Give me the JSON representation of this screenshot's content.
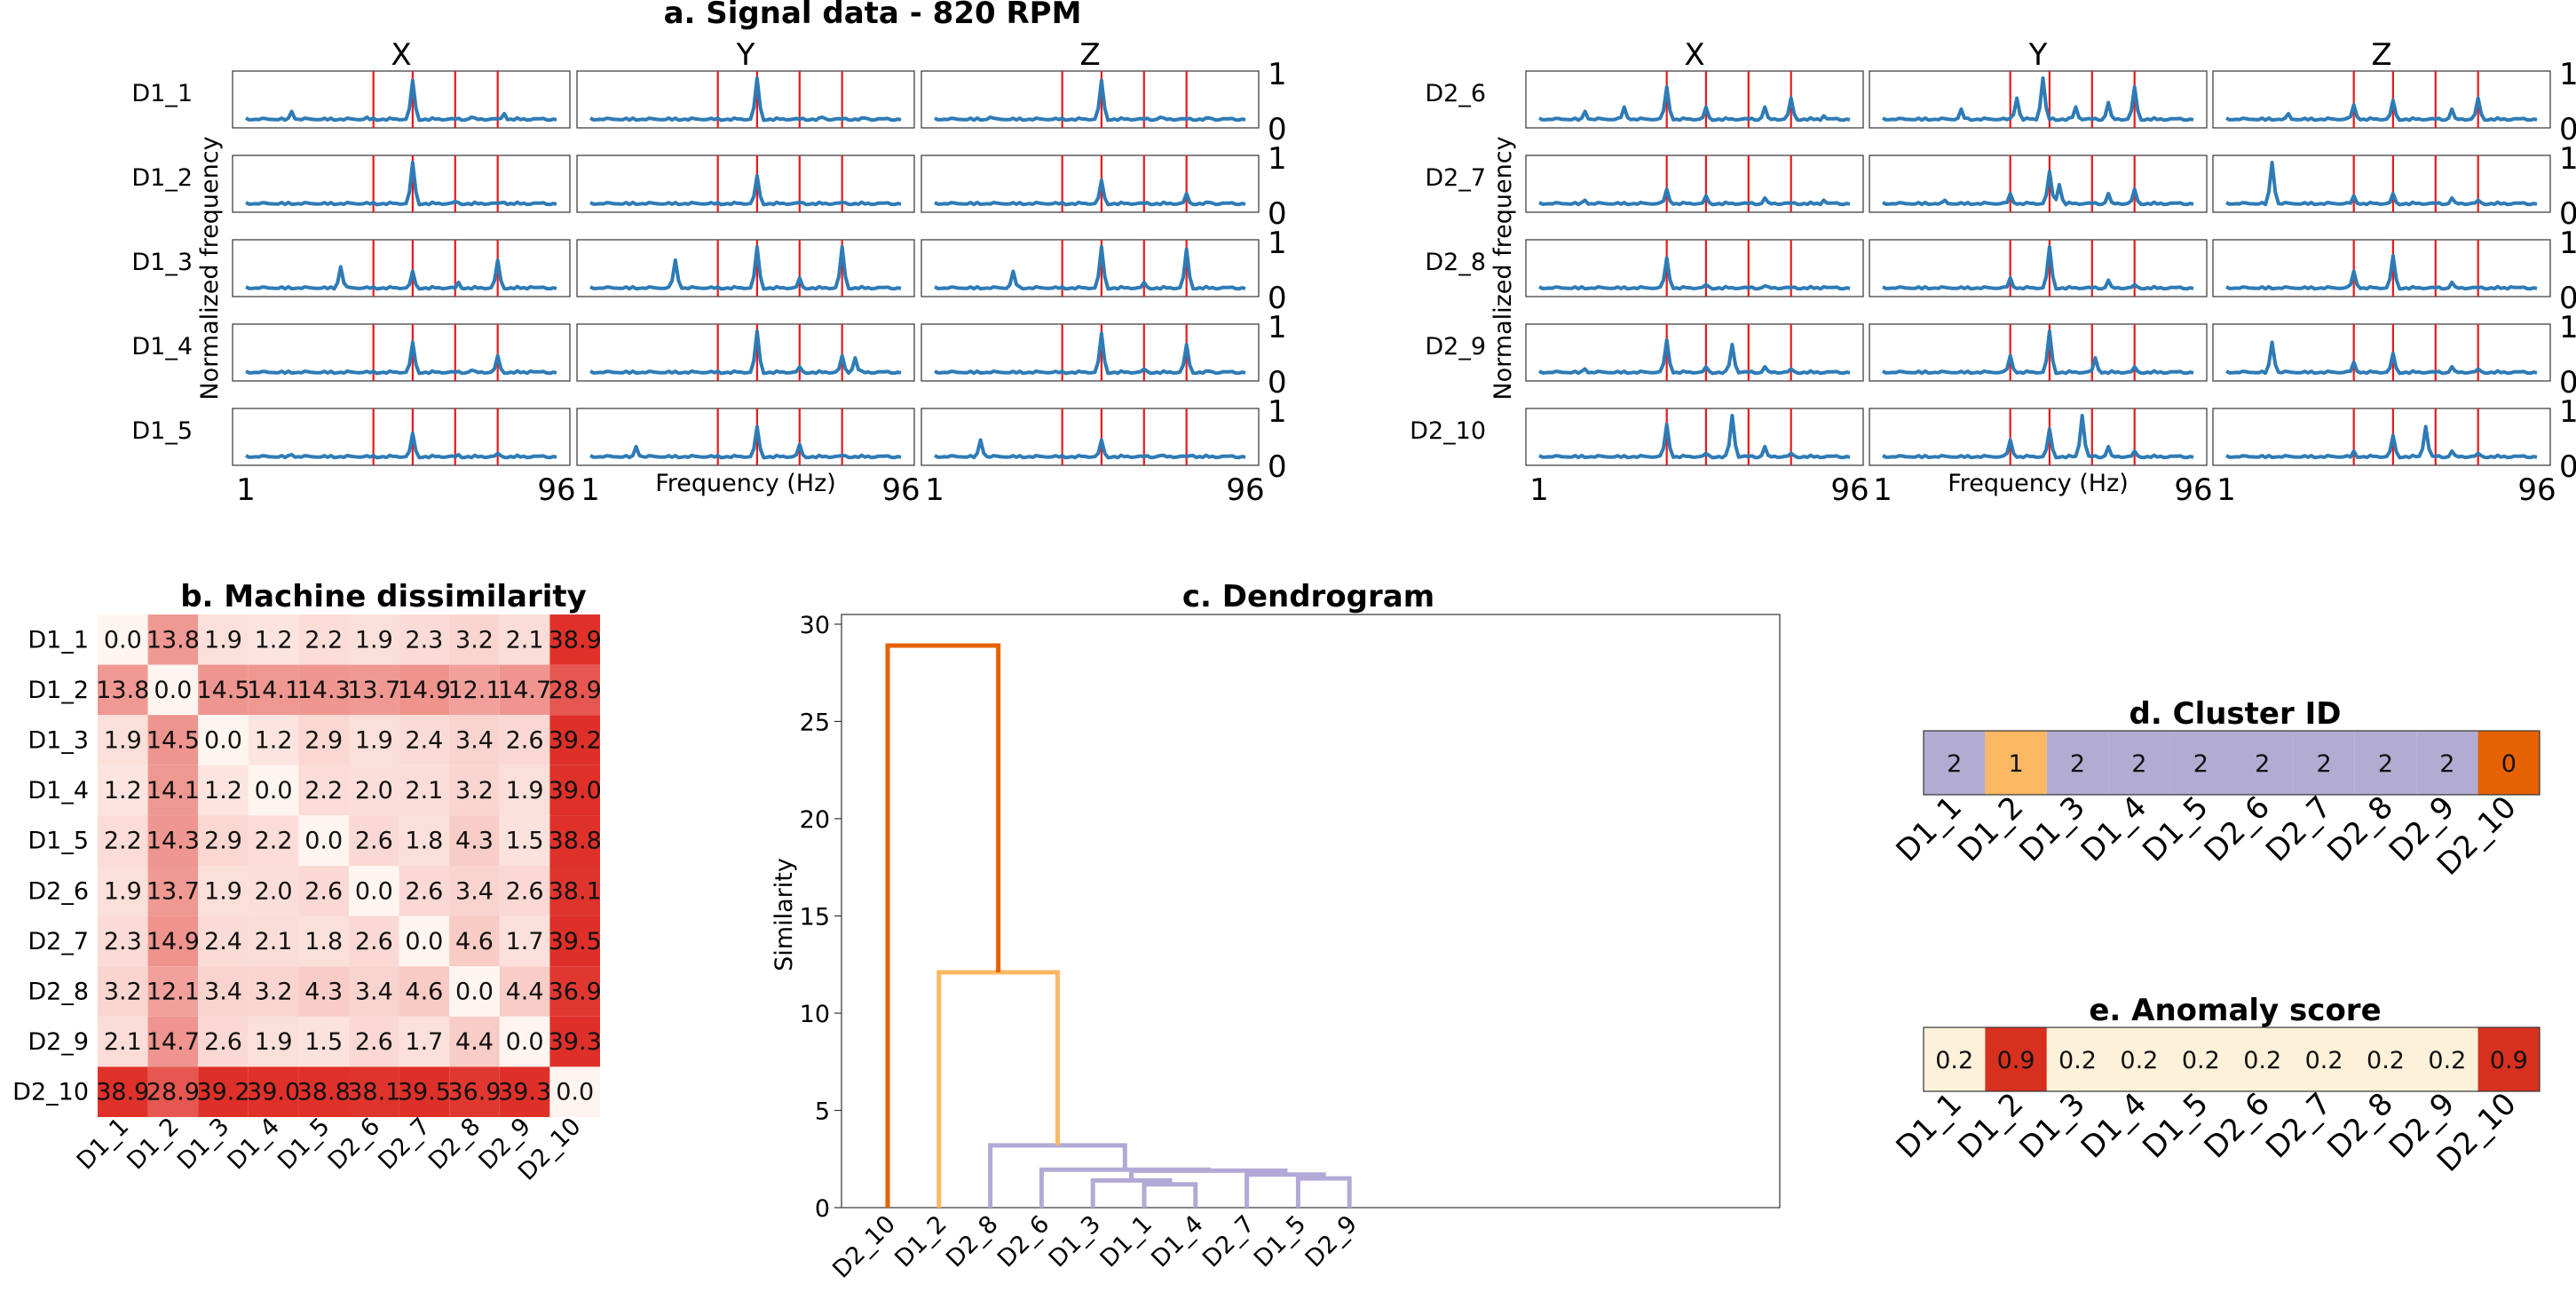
{
  "signals": {
    "title": "a. Signal data - 820 RPM",
    "axis_labels": [
      "X",
      "Y",
      "Z"
    ],
    "ylabel": "Normalized frequency",
    "xlabel": "Frequency (Hz)",
    "x_ticks": [
      "1",
      "96"
    ],
    "y_ticks": [
      "0",
      "1"
    ],
    "machines": [
      {
        "label": "D1_1",
        "peaks": [
          [
            [
              15,
              0.25
            ],
            [
              38,
              0.12
            ],
            [
              52,
              0.95
            ],
            [
              70,
              0.12
            ],
            [
              80,
              0.2
            ]
          ],
          [
            [
              25,
              0.1
            ],
            [
              52,
              1.0
            ],
            [
              72,
              0.12
            ],
            [
              85,
              0.1
            ]
          ],
          [
            [
              18,
              0.12
            ],
            [
              52,
              0.95
            ],
            [
              70,
              0.12
            ],
            [
              85,
              0.1
            ]
          ]
        ]
      },
      {
        "label": "D1_2",
        "peaks": [
          [
            [
              52,
              1.0
            ],
            [
              65,
              0.12
            ],
            [
              80,
              0.1
            ]
          ],
          [
            [
              52,
              0.7
            ],
            [
              65,
              0.1
            ],
            [
              78,
              0.1
            ]
          ],
          [
            [
              52,
              0.6
            ],
            [
              78,
              0.3
            ],
            [
              85,
              0.1
            ]
          ]
        ]
      },
      {
        "label": "D1_3",
        "peaks": [
          [
            [
              30,
              0.55
            ],
            [
              52,
              0.45
            ],
            [
              66,
              0.2
            ],
            [
              78,
              0.7
            ],
            [
              88,
              0.1
            ]
          ],
          [
            [
              27,
              0.7
            ],
            [
              52,
              1.0
            ],
            [
              65,
              0.3
            ],
            [
              78,
              1.0
            ]
          ],
          [
            [
              25,
              0.45
            ],
            [
              52,
              1.0
            ],
            [
              65,
              0.2
            ],
            [
              78,
              0.95
            ]
          ]
        ]
      },
      {
        "label": "D1_4",
        "peaks": [
          [
            [
              52,
              0.75
            ],
            [
              70,
              0.12
            ],
            [
              78,
              0.45
            ],
            [
              88,
              0.1
            ]
          ],
          [
            [
              52,
              1.0
            ],
            [
              65,
              0.2
            ],
            [
              78,
              0.45
            ],
            [
              82,
              0.4
            ]
          ],
          [
            [
              52,
              0.95
            ],
            [
              65,
              0.15
            ],
            [
              78,
              0.7
            ],
            [
              85,
              0.1
            ]
          ]
        ]
      },
      {
        "label": "D1_5",
        "peaks": [
          [
            [
              15,
              0.12
            ],
            [
              52,
              0.6
            ],
            [
              66,
              0.12
            ],
            [
              78,
              0.15
            ]
          ],
          [
            [
              15,
              0.3
            ],
            [
              52,
              0.75
            ],
            [
              65,
              0.35
            ],
            [
              78,
              0.1
            ]
          ],
          [
            [
              15,
              0.45
            ],
            [
              52,
              0.45
            ],
            [
              70,
              0.1
            ],
            [
              80,
              0.1
            ]
          ]
        ]
      },
      {
        "label": "D2_6",
        "peaks": [
          [
            [
              15,
              0.25
            ],
            [
              27,
              0.35
            ],
            [
              40,
              0.8
            ],
            [
              52,
              0.35
            ],
            [
              70,
              0.35
            ],
            [
              78,
              0.55
            ],
            [
              88,
              0.15
            ]
          ],
          [
            [
              25,
              0.3
            ],
            [
              42,
              0.55
            ],
            [
              50,
              1.0
            ],
            [
              60,
              0.35
            ],
            [
              70,
              0.45
            ],
            [
              78,
              0.8
            ]
          ],
          [
            [
              20,
              0.2
            ],
            [
              40,
              0.4
            ],
            [
              52,
              0.5
            ],
            [
              70,
              0.3
            ],
            [
              78,
              0.55
            ]
          ]
        ]
      },
      {
        "label": "D2_7",
        "peaks": [
          [
            [
              15,
              0.15
            ],
            [
              40,
              0.4
            ],
            [
              52,
              0.25
            ],
            [
              70,
              0.2
            ],
            [
              88,
              0.15
            ]
          ],
          [
            [
              20,
              0.15
            ],
            [
              40,
              0.3
            ],
            [
              52,
              0.8
            ],
            [
              55,
              0.5
            ],
            [
              70,
              0.3
            ],
            [
              78,
              0.4
            ]
          ],
          [
            [
              15,
              1.0
            ],
            [
              40,
              0.25
            ],
            [
              52,
              0.3
            ],
            [
              70,
              0.2
            ],
            [
              78,
              0.15
            ]
          ]
        ]
      },
      {
        "label": "D2_8",
        "peaks": [
          [
            [
              40,
              0.75
            ],
            [
              52,
              0.15
            ],
            [
              70,
              0.12
            ],
            [
              88,
              0.1
            ]
          ],
          [
            [
              40,
              0.3
            ],
            [
              52,
              1.0
            ],
            [
              70,
              0.25
            ],
            [
              78,
              0.15
            ]
          ],
          [
            [
              40,
              0.45
            ],
            [
              52,
              0.8
            ],
            [
              70,
              0.2
            ],
            [
              88,
              0.1
            ]
          ]
        ]
      },
      {
        "label": "D2_9",
        "peaks": [
          [
            [
              15,
              0.15
            ],
            [
              40,
              0.8
            ],
            [
              52,
              0.2
            ],
            [
              60,
              0.7
            ],
            [
              70,
              0.2
            ],
            [
              78,
              0.15
            ]
          ],
          [
            [
              40,
              0.45
            ],
            [
              52,
              1.0
            ],
            [
              66,
              0.4
            ],
            [
              78,
              0.2
            ]
          ],
          [
            [
              15,
              0.75
            ],
            [
              40,
              0.3
            ],
            [
              52,
              0.5
            ],
            [
              70,
              0.2
            ],
            [
              78,
              0.15
            ]
          ]
        ]
      },
      {
        "label": "D2_10",
        "peaks": [
          [
            [
              40,
              0.8
            ],
            [
              52,
              0.15
            ],
            [
              60,
              1.0
            ],
            [
              70,
              0.3
            ],
            [
              78,
              0.15
            ]
          ],
          [
            [
              40,
              0.45
            ],
            [
              52,
              0.7
            ],
            [
              62,
              1.0
            ],
            [
              70,
              0.3
            ],
            [
              78,
              0.2
            ]
          ],
          [
            [
              40,
              0.2
            ],
            [
              52,
              0.55
            ],
            [
              62,
              0.75
            ],
            [
              70,
              0.2
            ],
            [
              78,
              0.15
            ]
          ]
        ]
      }
    ],
    "marker_freqs": [
      40,
      52,
      65,
      78
    ],
    "line_color": "#2e7bb6",
    "marker_color": "#e41a1c"
  },
  "matrix": {
    "title": "b. Machine dissimilarity",
    "labels": [
      "D1_1",
      "D1_2",
      "D1_3",
      "D1_4",
      "D1_5",
      "D2_6",
      "D2_7",
      "D2_8",
      "D2_9",
      "D2_10"
    ],
    "values": [
      [
        "0.0",
        "13.8",
        "1.9",
        "1.2",
        "2.2",
        "1.9",
        "2.3",
        "3.2",
        "2.1",
        "38.9"
      ],
      [
        "13.8",
        "0.0",
        "14.5",
        "14.1",
        "14.3",
        "13.7",
        "14.9",
        "12.1",
        "14.7",
        "28.9"
      ],
      [
        "1.9",
        "14.5",
        "0.0",
        "1.2",
        "2.9",
        "1.9",
        "2.4",
        "3.4",
        "2.6",
        "39.2"
      ],
      [
        "1.2",
        "14.1",
        "1.2",
        "0.0",
        "2.2",
        "2.0",
        "2.1",
        "3.2",
        "1.9",
        "39.0"
      ],
      [
        "2.2",
        "14.3",
        "2.9",
        "2.2",
        "0.0",
        "2.6",
        "1.8",
        "4.3",
        "1.5",
        "38.8"
      ],
      [
        "1.9",
        "13.7",
        "1.9",
        "2.0",
        "2.6",
        "0.0",
        "2.6",
        "3.4",
        "2.6",
        "38.1"
      ],
      [
        "2.3",
        "14.9",
        "2.4",
        "2.1",
        "1.8",
        "2.6",
        "0.0",
        "4.6",
        "1.7",
        "39.5"
      ],
      [
        "3.2",
        "12.1",
        "3.4",
        "3.2",
        "4.3",
        "3.4",
        "4.6",
        "0.0",
        "4.4",
        "36.9"
      ],
      [
        "2.1",
        "14.7",
        "2.6",
        "1.9",
        "1.5",
        "2.6",
        "1.7",
        "4.4",
        "0.0",
        "39.3"
      ],
      [
        "38.9",
        "28.9",
        "39.2",
        "39.0",
        "38.8",
        "38.1",
        "39.5",
        "36.9",
        "39.3",
        "0.0"
      ]
    ]
  },
  "chart_data": {
    "type": "dendrogram",
    "title": "c. Dendrogram",
    "ylabel": "Similarity",
    "ylim": [
      0,
      30.5
    ],
    "y_ticks": [
      "0",
      "5",
      "10",
      "15",
      "20",
      "25",
      "30"
    ],
    "leaves": [
      "D2_10",
      "D1_2",
      "D2_8",
      "D2_6",
      "D1_3",
      "D1_1",
      "D1_4",
      "D2_7",
      "D1_5",
      "D2_9"
    ],
    "links": [
      {
        "xl": 5,
        "xr": 6,
        "yl": 0,
        "yr": 0,
        "h": 1.2,
        "color": "#b3a9d6"
      },
      {
        "xl": 4,
        "xr": 5.5,
        "yl": 0,
        "yr": 1.2,
        "h": 1.4,
        "color": "#b3a9d6"
      },
      {
        "xl": 8,
        "xr": 9,
        "yl": 0,
        "yr": 0,
        "h": 1.5,
        "color": "#b3a9d6"
      },
      {
        "xl": 7,
        "xr": 8.5,
        "yl": 0,
        "yr": 1.5,
        "h": 1.7,
        "color": "#b3a9d6"
      },
      {
        "xl": 4.75,
        "xr": 7.75,
        "yl": 1.4,
        "yr": 1.7,
        "h": 1.9,
        "color": "#b3a9d6"
      },
      {
        "xl": 3,
        "xr": 6.25,
        "yl": 0,
        "yr": 1.9,
        "h": 1.95,
        "color": "#b3a9d6"
      },
      {
        "xl": 2,
        "xr": 4.625,
        "yl": 0,
        "yr": 1.95,
        "h": 3.2,
        "color": "#b3a9d6"
      },
      {
        "xl": 1,
        "xr": 3.3125,
        "yl": 0,
        "yr": 3.2,
        "h": 12.1,
        "color": "#fdb863"
      },
      {
        "xl": 0,
        "xr": 2.15625,
        "yl": 0,
        "yr": 12.1,
        "h": 28.9,
        "color": "#e66101"
      }
    ]
  },
  "cluster": {
    "title": "d. Cluster ID",
    "labels": [
      "D1_1",
      "D1_2",
      "D1_3",
      "D1_4",
      "D1_5",
      "D2_6",
      "D2_7",
      "D2_8",
      "D2_9",
      "D2_10"
    ],
    "values": [
      "2",
      "1",
      "2",
      "2",
      "2",
      "2",
      "2",
      "2",
      "2",
      "0"
    ],
    "colors": [
      "#b2abd2",
      "#fdb863",
      "#b2abd2",
      "#b2abd2",
      "#b2abd2",
      "#b2abd2",
      "#b2abd2",
      "#b2abd2",
      "#b2abd2",
      "#e66101"
    ]
  },
  "anomaly": {
    "title": "e. Anomaly score",
    "labels": [
      "D1_1",
      "D1_2",
      "D1_3",
      "D1_4",
      "D1_5",
      "D2_6",
      "D2_7",
      "D2_8",
      "D2_9",
      "D2_10"
    ],
    "values": [
      "0.2",
      "0.9",
      "0.2",
      "0.2",
      "0.2",
      "0.2",
      "0.2",
      "0.2",
      "0.2",
      "0.9"
    ],
    "colors": [
      "#fdf1d9",
      "#d7301f",
      "#fdf1d9",
      "#fdf1d9",
      "#fdf1d9",
      "#fdf1d9",
      "#fdf1d9",
      "#fdf1d9",
      "#fdf1d9",
      "#d7301f"
    ]
  }
}
